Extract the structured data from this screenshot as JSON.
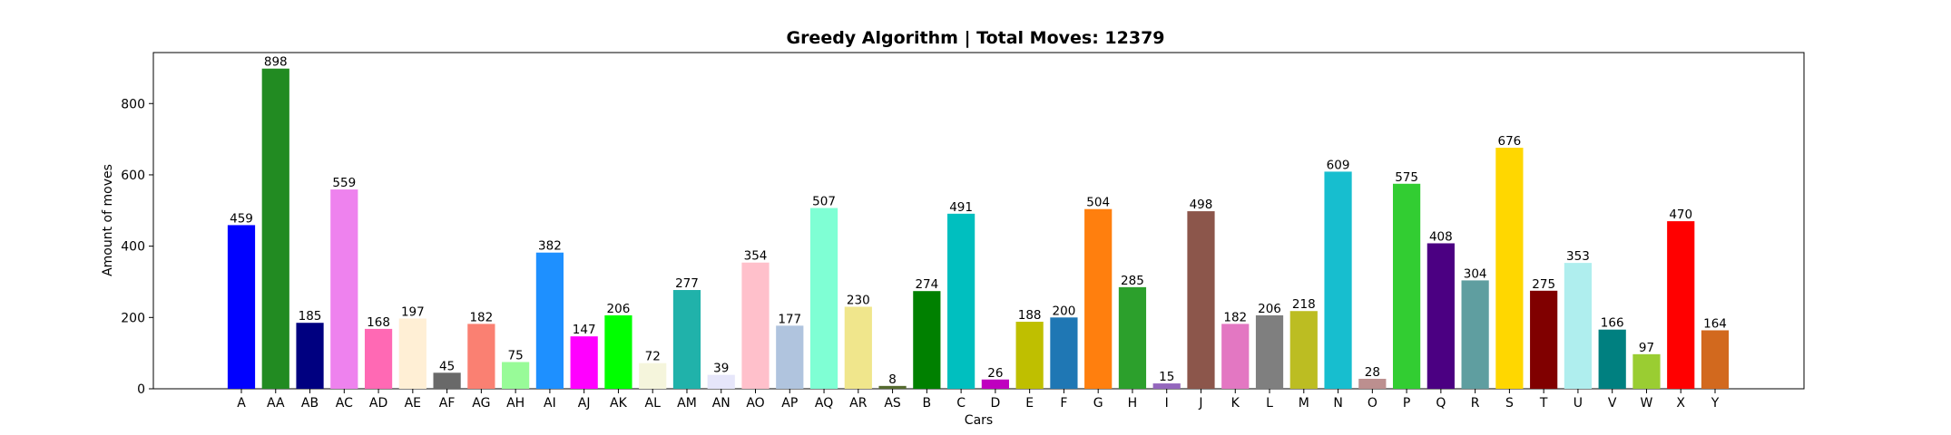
{
  "chart_data": {
    "type": "bar",
    "title": "Greedy Algorithm | Total Moves: 12379",
    "xlabel": "Cars",
    "ylabel": "Amount of moves",
    "ylim": [
      0,
      943
    ],
    "yticks": [
      0,
      200,
      400,
      600,
      800
    ],
    "grid": false,
    "categories": [
      "A",
      "AA",
      "AB",
      "AC",
      "AD",
      "AE",
      "AF",
      "AG",
      "AH",
      "AI",
      "AJ",
      "AK",
      "AL",
      "AM",
      "AN",
      "AO",
      "AP",
      "AQ",
      "AR",
      "AS",
      "B",
      "C",
      "D",
      "E",
      "F",
      "G",
      "H",
      "I",
      "J",
      "K",
      "L",
      "M",
      "N",
      "O",
      "P",
      "Q",
      "R",
      "S",
      "T",
      "U",
      "V",
      "W",
      "X",
      "Y"
    ],
    "values": [
      459,
      898,
      185,
      559,
      168,
      197,
      45,
      182,
      75,
      382,
      147,
      206,
      72,
      277,
      39,
      354,
      177,
      507,
      230,
      8,
      274,
      491,
      26,
      188,
      200,
      504,
      285,
      15,
      498,
      182,
      206,
      218,
      609,
      28,
      575,
      408,
      304,
      676,
      275,
      353,
      166,
      97,
      470,
      164
    ],
    "colors": [
      "#0000ff",
      "#228b22",
      "#000080",
      "#ee82ee",
      "#ff69b4",
      "#ffefd5",
      "#696969",
      "#fa8072",
      "#98fb98",
      "#1e90ff",
      "#ff00ff",
      "#00ff00",
      "#f5f5dc",
      "#20b2aa",
      "#e6e6fa",
      "#ffc0cb",
      "#b0c4de",
      "#7fffd4",
      "#f0e68c",
      "#556b2f",
      "#008000",
      "#00bfbf",
      "#bf00bf",
      "#bfbf00",
      "#1f77b4",
      "#ff7f0e",
      "#2ca02c",
      "#9467bd",
      "#8c564b",
      "#e377c2",
      "#7f7f7f",
      "#bcbd22",
      "#17becf",
      "#bc8f8f",
      "#32cd32",
      "#4b0082",
      "#5f9ea0",
      "#ffd700",
      "#800000",
      "#afeeee",
      "#008080",
      "#9acd32",
      "#ff0000",
      "#d2691e"
    ]
  }
}
